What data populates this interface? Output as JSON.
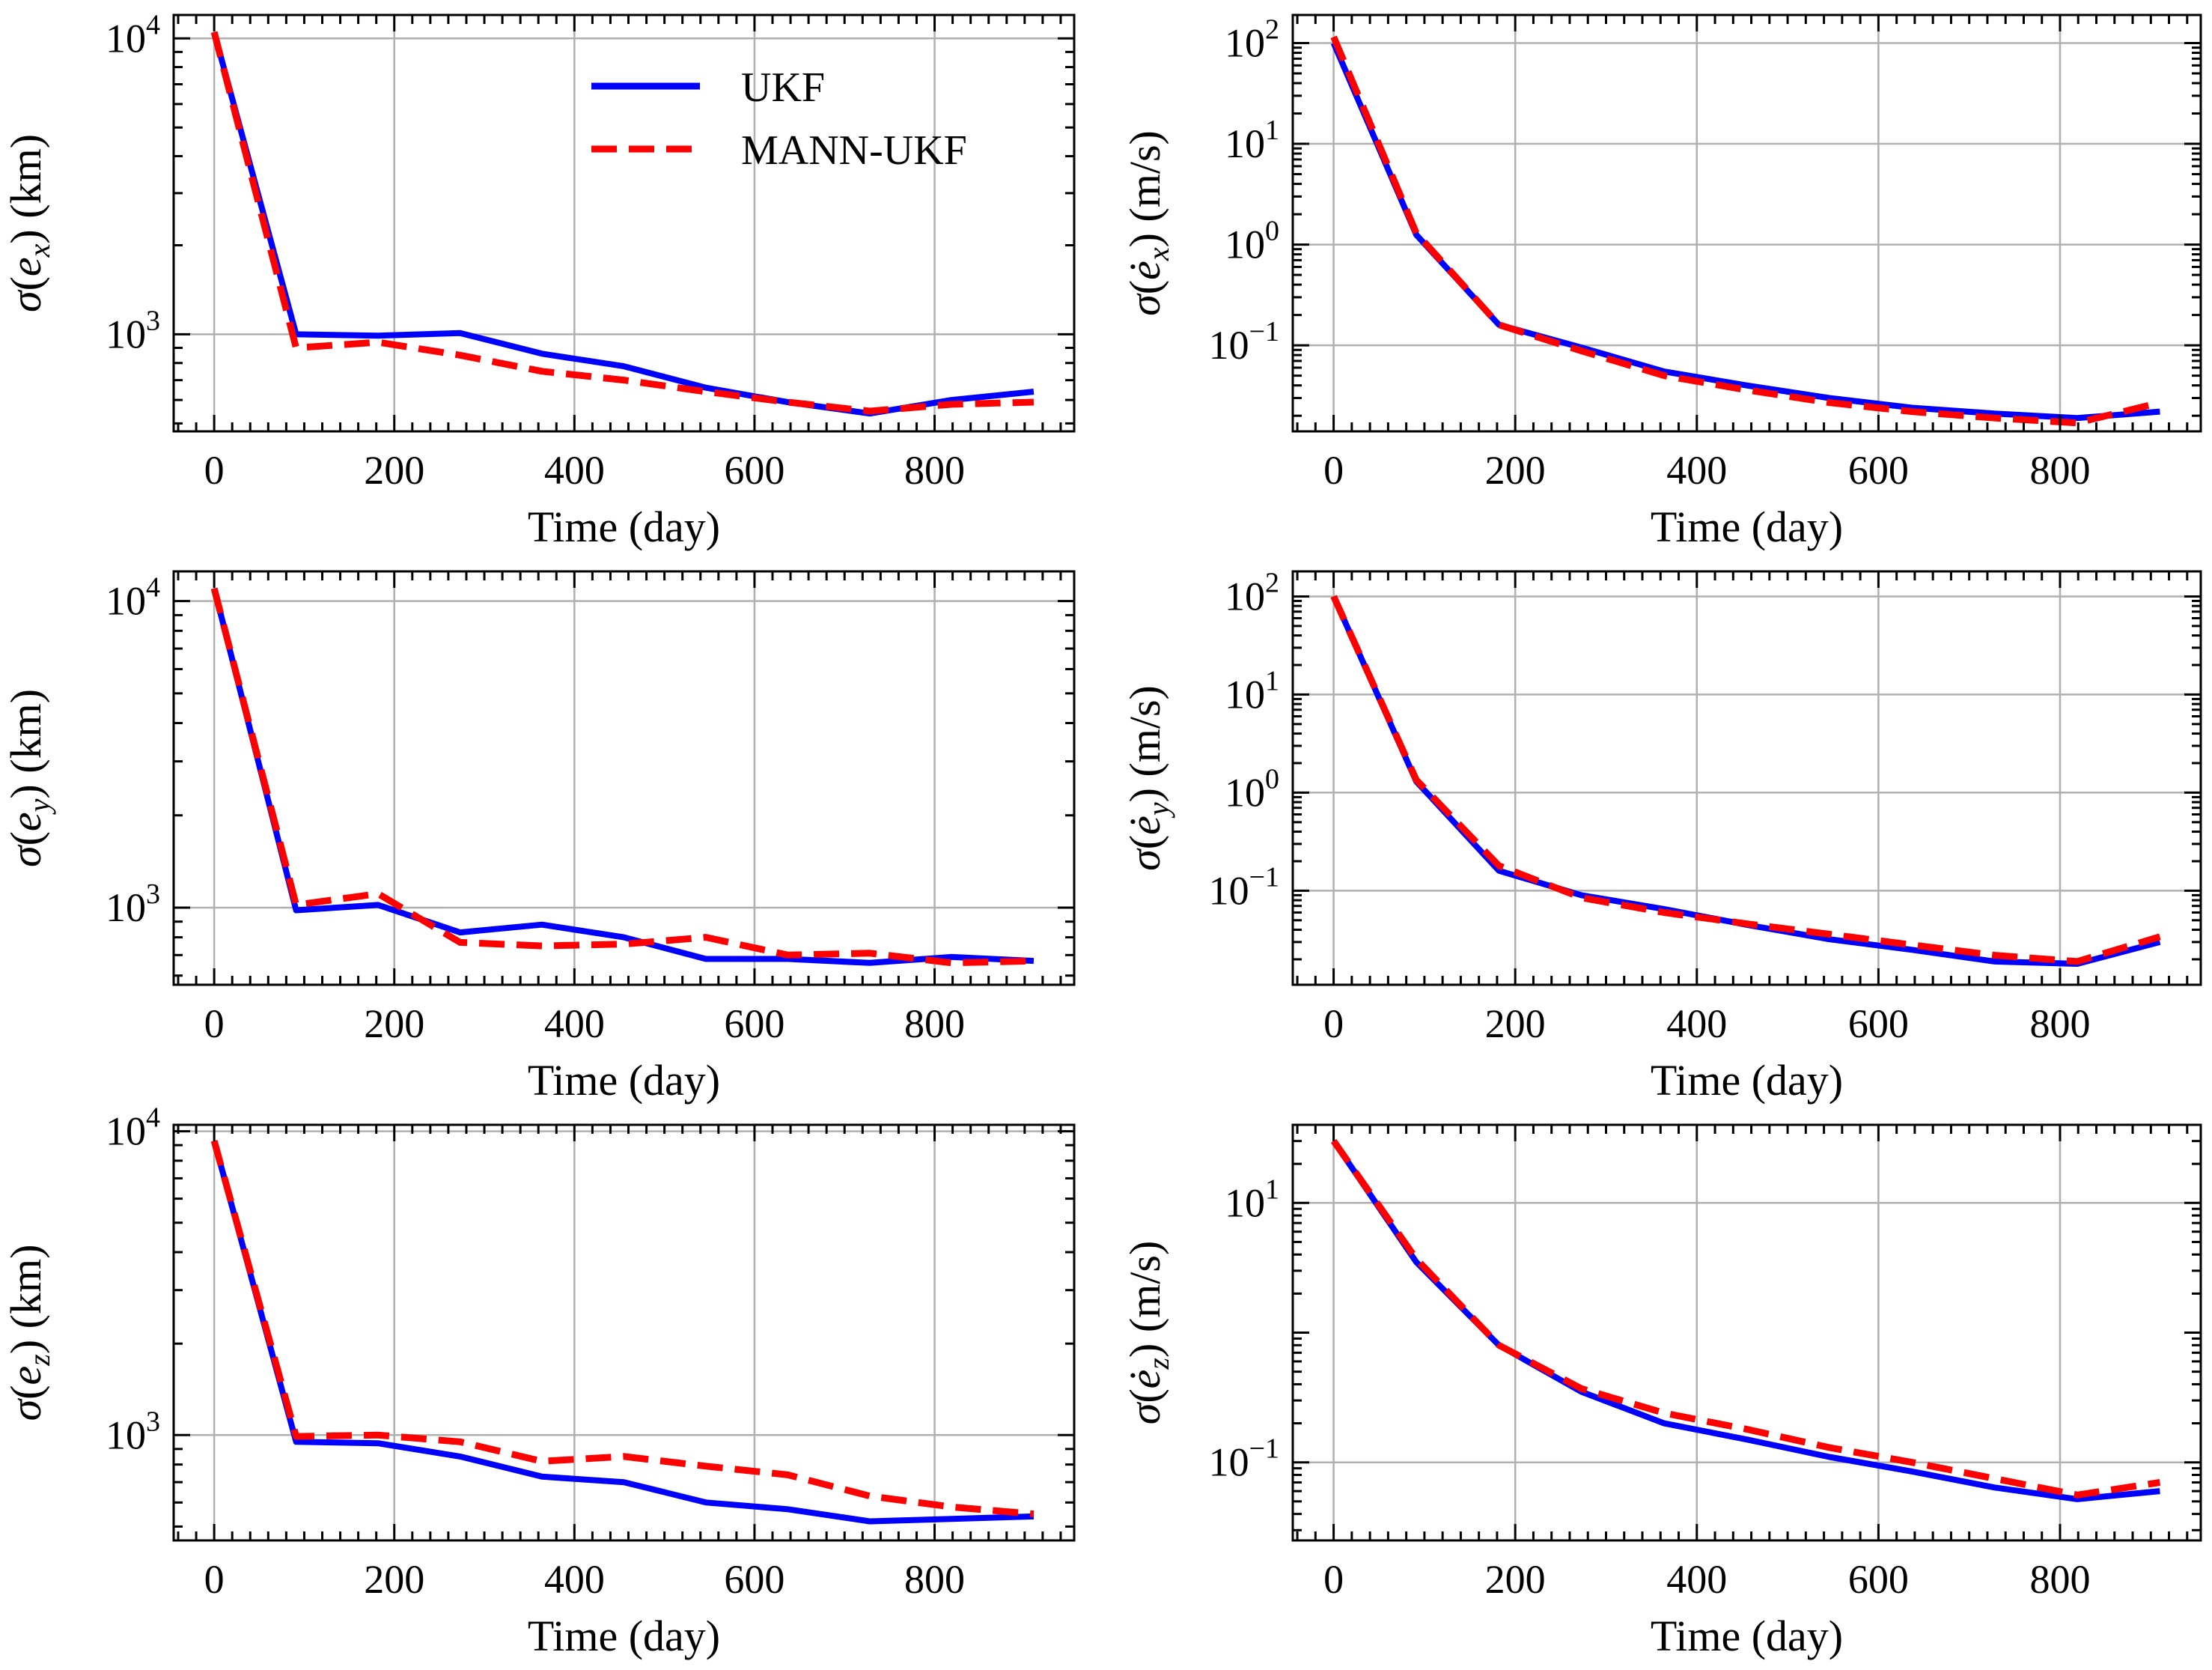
{
  "figure": {
    "layout": "3 rows x 2 columns",
    "legend_location": "upper-right of top-left panel"
  },
  "colors": {
    "UKF": "#0000ff",
    "MANN-UKF": "#ff0000",
    "grid": "#b0b0b0",
    "axes": "#000000"
  },
  "chart_data": [
    {
      "type": "line",
      "id": "ex",
      "yscale": "log",
      "title": "",
      "ylabel": {
        "prefix": "σ(",
        "var": "e",
        "sub": "x",
        "dot": false,
        "suffix": ")",
        "unit": " (km)"
      },
      "xlabel": "Time (day)",
      "xlim": [
        -45,
        955
      ],
      "ylim": [
        470,
        12000
      ],
      "xticks": [
        0,
        200,
        400,
        600,
        800
      ],
      "yticks": [
        {
          "value": 1000,
          "base": "10",
          "exp": "3"
        },
        {
          "value": 10000,
          "base": "10",
          "exp": "4"
        }
      ],
      "x": [
        0,
        91,
        182,
        273,
        364,
        455,
        546,
        637,
        728,
        819,
        910
      ],
      "series": [
        {
          "name": "UKF",
          "style": "solid",
          "values": [
            10500,
            1000,
            990,
            1010,
            860,
            780,
            660,
            590,
            540,
            600,
            640
          ]
        },
        {
          "name": "MANN-UKF",
          "style": "dashed",
          "values": [
            10500,
            900,
            940,
            850,
            750,
            700,
            640,
            590,
            550,
            580,
            590
          ]
        }
      ],
      "legend": [
        "UKF",
        "MANN-UKF"
      ]
    },
    {
      "type": "line",
      "id": "vx",
      "yscale": "log",
      "title": "",
      "ylabel": {
        "prefix": "σ(",
        "var": "e",
        "sub": "x",
        "dot": true,
        "suffix": ")",
        "unit": " (m/s)"
      },
      "xlabel": "Time (day)",
      "xlim": [
        -45,
        955
      ],
      "ylim": [
        0.014,
        190
      ],
      "xticks": [
        0,
        200,
        400,
        600,
        800
      ],
      "yticks": [
        {
          "value": 0.1,
          "base": "10",
          "exp": "−1"
        },
        {
          "value": 1,
          "base": "10",
          "exp": "0"
        },
        {
          "value": 10,
          "base": "10",
          "exp": "1"
        },
        {
          "value": 100,
          "base": "10",
          "exp": "2"
        }
      ],
      "x": [
        0,
        91,
        182,
        273,
        364,
        455,
        546,
        637,
        728,
        819,
        910
      ],
      "series": [
        {
          "name": "UKF",
          "style": "solid",
          "values": [
            100,
            1.25,
            0.16,
            0.095,
            0.055,
            0.04,
            0.03,
            0.024,
            0.021,
            0.019,
            0.022
          ]
        },
        {
          "name": "MANN-UKF",
          "style": "dashed",
          "values": [
            115,
            1.3,
            0.16,
            0.088,
            0.05,
            0.036,
            0.027,
            0.022,
            0.019,
            0.017,
            0.027
          ]
        }
      ]
    },
    {
      "type": "line",
      "id": "ey",
      "yscale": "log",
      "title": "",
      "ylabel": {
        "prefix": "σ(",
        "var": "e",
        "sub": "y",
        "dot": false,
        "suffix": ")",
        "unit": " (km)"
      },
      "xlabel": "Time (day)",
      "xlim": [
        -45,
        955
      ],
      "ylim": [
        560,
        12500
      ],
      "xticks": [
        0,
        200,
        400,
        600,
        800
      ],
      "yticks": [
        {
          "value": 1000,
          "base": "10",
          "exp": "3"
        },
        {
          "value": 10000,
          "base": "10",
          "exp": "4"
        }
      ],
      "x": [
        0,
        91,
        182,
        273,
        364,
        455,
        546,
        637,
        728,
        819,
        910
      ],
      "series": [
        {
          "name": "UKF",
          "style": "solid",
          "values": [
            11000,
            980,
            1020,
            830,
            880,
            800,
            680,
            680,
            660,
            690,
            670
          ]
        },
        {
          "name": "MANN-UKF",
          "style": "dashed",
          "values": [
            11000,
            1020,
            1110,
            770,
            750,
            760,
            800,
            700,
            710,
            660,
            670
          ]
        }
      ]
    },
    {
      "type": "line",
      "id": "vy",
      "yscale": "log",
      "title": "",
      "ylabel": {
        "prefix": "σ(",
        "var": "e",
        "sub": "y",
        "dot": true,
        "suffix": ")",
        "unit": " (m/s)"
      },
      "xlabel": "Time (day)",
      "xlim": [
        -45,
        955
      ],
      "ylim": [
        0.011,
        180
      ],
      "xticks": [
        0,
        200,
        400,
        600,
        800
      ],
      "yticks": [
        {
          "value": 0.1,
          "base": "10",
          "exp": "−1"
        },
        {
          "value": 1,
          "base": "10",
          "exp": "0"
        },
        {
          "value": 10,
          "base": "10",
          "exp": "1"
        },
        {
          "value": 100,
          "base": "10",
          "exp": "2"
        }
      ],
      "x": [
        0,
        91,
        182,
        273,
        364,
        455,
        546,
        637,
        728,
        819,
        910
      ],
      "series": [
        {
          "name": "UKF",
          "style": "solid",
          "values": [
            100,
            1.3,
            0.16,
            0.09,
            0.065,
            0.045,
            0.032,
            0.025,
            0.019,
            0.018,
            0.03
          ]
        },
        {
          "name": "MANN-UKF",
          "style": "dashed",
          "values": [
            100,
            1.35,
            0.18,
            0.085,
            0.06,
            0.046,
            0.036,
            0.028,
            0.022,
            0.019,
            0.034
          ]
        }
      ]
    },
    {
      "type": "line",
      "id": "ez",
      "yscale": "log",
      "title": "",
      "ylabel": {
        "prefix": "σ(",
        "var": "e",
        "sub": "z",
        "dot": false,
        "suffix": ")",
        "unit": " (km)"
      },
      "xlabel": "Time (day)",
      "xlim": [
        -45,
        955
      ],
      "ylim": [
        450,
        10500
      ],
      "xticks": [
        0,
        200,
        400,
        600,
        800
      ],
      "yticks": [
        {
          "value": 1000,
          "base": "10",
          "exp": "3"
        },
        {
          "value": 10000,
          "base": "10",
          "exp": "4"
        }
      ],
      "x": [
        0,
        91,
        182,
        273,
        364,
        455,
        546,
        637,
        728,
        819,
        910
      ],
      "series": [
        {
          "name": "UKF",
          "style": "solid",
          "values": [
            9300,
            950,
            940,
            850,
            730,
            700,
            600,
            570,
            520,
            530,
            540
          ]
        },
        {
          "name": "MANN-UKF",
          "style": "dashed",
          "values": [
            9300,
            990,
            1000,
            950,
            820,
            850,
            790,
            740,
            630,
            580,
            550
          ]
        }
      ]
    },
    {
      "type": "line",
      "id": "vz",
      "yscale": "log",
      "title": "",
      "ylabel": {
        "prefix": "σ(",
        "var": "e",
        "sub": "z",
        "dot": true,
        "suffix": ")",
        "unit": " (m/s)"
      },
      "xlabel": "Time (day)",
      "xlim": [
        -45,
        955
      ],
      "ylim": [
        0.025,
        40
      ],
      "xticks": [
        0,
        200,
        400,
        600,
        800
      ],
      "yticks": [
        {
          "value": 0.1,
          "base": "10",
          "exp": "−1"
        },
        {
          "value": 10,
          "base": "10",
          "exp": "1"
        }
      ],
      "x": [
        0,
        91,
        182,
        273,
        364,
        455,
        546,
        637,
        728,
        819,
        910
      ],
      "series": [
        {
          "name": "UKF",
          "style": "solid",
          "values": [
            30,
            3.5,
            0.8,
            0.35,
            0.2,
            0.15,
            0.11,
            0.085,
            0.064,
            0.052,
            0.06
          ]
        },
        {
          "name": "MANN-UKF",
          "style": "dashed",
          "values": [
            30,
            3.7,
            0.8,
            0.37,
            0.24,
            0.18,
            0.13,
            0.1,
            0.075,
            0.056,
            0.07
          ]
        }
      ]
    }
  ]
}
